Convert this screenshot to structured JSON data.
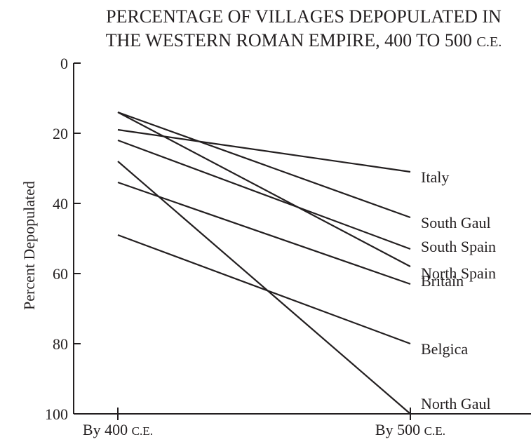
{
  "chart_data": {
    "type": "line",
    "title_lines": [
      "PERCENTAGE OF VILLAGES DEPOPULATED IN",
      "THE WESTERN ROMAN EMPIRE, 400 TO 500 C.E."
    ],
    "xlabel": "",
    "ylabel": "Percent Depopulated",
    "categories": [
      "By 400 C.E.",
      "By 500 C.E."
    ],
    "y_ticks": [
      0,
      20,
      40,
      60,
      80,
      100
    ],
    "ylim": [
      0,
      100
    ],
    "y_inverted": true,
    "grid": false,
    "series": [
      {
        "name": "Italy",
        "values": [
          19,
          31
        ]
      },
      {
        "name": "South Gaul",
        "values": [
          14,
          44
        ]
      },
      {
        "name": "South Spain",
        "values": [
          22,
          53
        ]
      },
      {
        "name": "North Spain",
        "values": [
          14,
          58
        ]
      },
      {
        "name": "Britain",
        "values": [
          34,
          63
        ]
      },
      {
        "name": "Belgica",
        "values": [
          49,
          80
        ]
      },
      {
        "name": "North Gaul",
        "values": [
          28,
          100
        ]
      }
    ],
    "colors": {
      "line": "#231f20",
      "background": "#ffffff"
    }
  }
}
